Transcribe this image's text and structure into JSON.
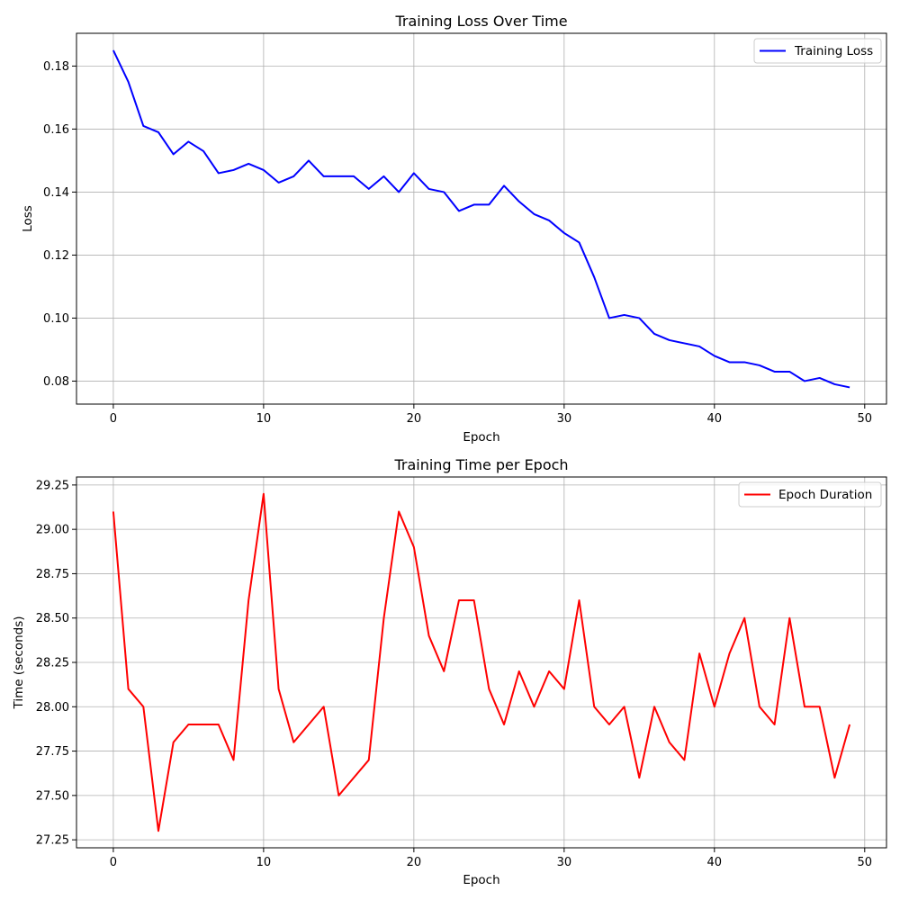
{
  "chart_data": [
    {
      "type": "line",
      "title": "Training Loss Over Time",
      "xlabel": "Epoch",
      "ylabel": "Loss",
      "xlim": [
        -2.45,
        51.45
      ],
      "ylim": [
        0.0727,
        0.1904
      ],
      "xticks": [
        0,
        10,
        20,
        30,
        40,
        50
      ],
      "yticks": [
        0.08,
        0.1,
        0.12,
        0.14,
        0.16,
        0.18
      ],
      "ytick_decimals": 2,
      "grid": true,
      "legend_position": "upper-right",
      "x": [
        0,
        1,
        2,
        3,
        4,
        5,
        6,
        7,
        8,
        9,
        10,
        11,
        12,
        13,
        14,
        15,
        16,
        17,
        18,
        19,
        20,
        21,
        22,
        23,
        24,
        25,
        26,
        27,
        28,
        29,
        30,
        31,
        32,
        33,
        34,
        35,
        36,
        37,
        38,
        39,
        40,
        41,
        42,
        43,
        44,
        45,
        46,
        47,
        48,
        49
      ],
      "series": [
        {
          "name": "Training Loss",
          "color": "#0000ff",
          "values": [
            0.185,
            0.175,
            0.161,
            0.159,
            0.152,
            0.156,
            0.153,
            0.146,
            0.147,
            0.149,
            0.147,
            0.143,
            0.145,
            0.15,
            0.145,
            0.145,
            0.145,
            0.141,
            0.145,
            0.14,
            0.146,
            0.141,
            0.14,
            0.134,
            0.136,
            0.136,
            0.142,
            0.137,
            0.133,
            0.131,
            0.127,
            0.124,
            0.113,
            0.1,
            0.101,
            0.1,
            0.095,
            0.093,
            0.092,
            0.091,
            0.088,
            0.086,
            0.086,
            0.085,
            0.083,
            0.083,
            0.08,
            0.081,
            0.079,
            0.078
          ]
        }
      ]
    },
    {
      "type": "line",
      "title": "Training Time per Epoch",
      "xlabel": "Epoch",
      "ylabel": "Time (seconds)",
      "xlim": [
        -2.45,
        51.45
      ],
      "ylim": [
        27.205,
        29.295
      ],
      "xticks": [
        0,
        10,
        20,
        30,
        40,
        50
      ],
      "yticks": [
        27.25,
        27.5,
        27.75,
        28.0,
        28.25,
        28.5,
        28.75,
        29.0,
        29.25
      ],
      "ytick_decimals": 2,
      "grid": true,
      "legend_position": "upper-right",
      "x": [
        0,
        1,
        2,
        3,
        4,
        5,
        6,
        7,
        8,
        9,
        10,
        11,
        12,
        13,
        14,
        15,
        16,
        17,
        18,
        19,
        20,
        21,
        22,
        23,
        24,
        25,
        26,
        27,
        28,
        29,
        30,
        31,
        32,
        33,
        34,
        35,
        36,
        37,
        38,
        39,
        40,
        41,
        42,
        43,
        44,
        45,
        46,
        47,
        48,
        49
      ],
      "series": [
        {
          "name": "Epoch Duration",
          "color": "#ff0000",
          "values": [
            29.1,
            28.1,
            28.0,
            27.3,
            27.8,
            27.9,
            27.9,
            27.9,
            27.7,
            28.6,
            29.2,
            28.1,
            27.8,
            27.9,
            28.0,
            27.5,
            27.6,
            27.7,
            28.5,
            29.1,
            28.9,
            28.4,
            28.2,
            28.6,
            28.6,
            28.1,
            27.9,
            28.2,
            28.0,
            28.2,
            28.1,
            28.6,
            28.0,
            27.9,
            28.0,
            27.6,
            28.0,
            27.8,
            27.7,
            28.3,
            28.0,
            28.3,
            28.5,
            28.0,
            27.9,
            28.5,
            28.0,
            28.0,
            27.6,
            27.9
          ]
        }
      ]
    }
  ]
}
